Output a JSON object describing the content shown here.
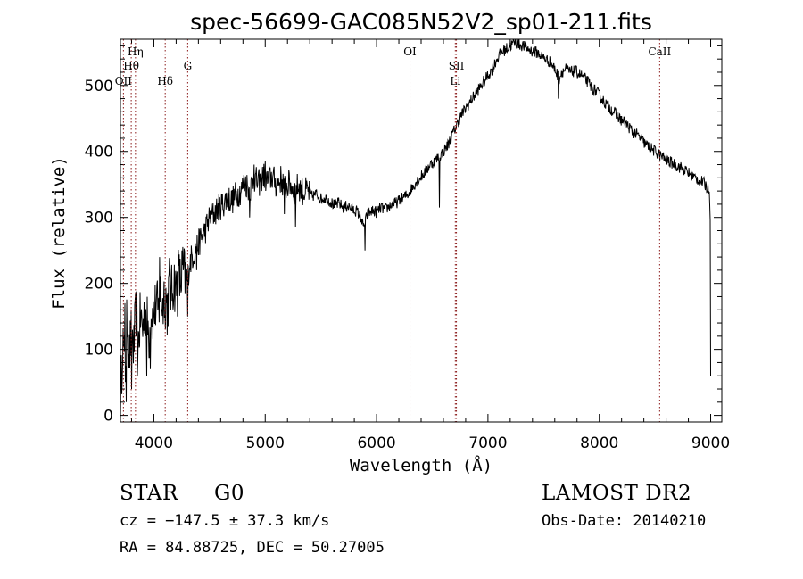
{
  "chart_data": {
    "type": "line",
    "title": "spec-56699-GAC085N52V2_sp01-211.fits",
    "xlabel": "Wavelength (Å)",
    "ylabel": "Flux (relative)",
    "xlim": [
      3700,
      9100
    ],
    "ylim": [
      -10,
      570
    ],
    "xticks": [
      4000,
      5000,
      6000,
      7000,
      8000,
      9000
    ],
    "yticks": [
      0,
      100,
      200,
      300,
      400,
      500
    ],
    "grid": false,
    "spectrum": [
      [
        3700,
        5
      ],
      [
        3720,
        120
      ],
      [
        3740,
        60
      ],
      [
        3760,
        150
      ],
      [
        3780,
        90
      ],
      [
        3800,
        130
      ],
      [
        3820,
        100
      ],
      [
        3840,
        160
      ],
      [
        3860,
        110
      ],
      [
        3880,
        150
      ],
      [
        3900,
        130
      ],
      [
        3920,
        165
      ],
      [
        3940,
        140
      ],
      [
        3960,
        120
      ],
      [
        3980,
        160
      ],
      [
        4000,
        150
      ],
      [
        4020,
        170
      ],
      [
        4040,
        155
      ],
      [
        4060,
        185
      ],
      [
        4080,
        165
      ],
      [
        4100,
        195
      ],
      [
        4120,
        160
      ],
      [
        4140,
        200
      ],
      [
        4160,
        185
      ],
      [
        4180,
        205
      ],
      [
        4200,
        190
      ],
      [
        4220,
        215
      ],
      [
        4240,
        200
      ],
      [
        4260,
        220
      ],
      [
        4280,
        210
      ],
      [
        4300,
        200
      ],
      [
        4320,
        230
      ],
      [
        4340,
        240
      ],
      [
        4360,
        245
      ],
      [
        4380,
        255
      ],
      [
        4400,
        260
      ],
      [
        4430,
        270
      ],
      [
        4460,
        280
      ],
      [
        4500,
        300
      ],
      [
        4540,
        305
      ],
      [
        4580,
        315
      ],
      [
        4620,
        320
      ],
      [
        4660,
        330
      ],
      [
        4700,
        325
      ],
      [
        4740,
        335
      ],
      [
        4780,
        340
      ],
      [
        4820,
        355
      ],
      [
        4860,
        340
      ],
      [
        4900,
        360
      ],
      [
        4940,
        350
      ],
      [
        4980,
        365
      ],
      [
        5020,
        355
      ],
      [
        5060,
        362
      ],
      [
        5100,
        350
      ],
      [
        5140,
        358
      ],
      [
        5180,
        345
      ],
      [
        5220,
        352
      ],
      [
        5260,
        340
      ],
      [
        5300,
        348
      ],
      [
        5340,
        338
      ],
      [
        5380,
        340
      ],
      [
        5420,
        332
      ],
      [
        5460,
        336
      ],
      [
        5500,
        328
      ],
      [
        5540,
        330
      ],
      [
        5580,
        325
      ],
      [
        5620,
        318
      ],
      [
        5660,
        322
      ],
      [
        5700,
        315
      ],
      [
        5740,
        318
      ],
      [
        5780,
        312
      ],
      [
        5820,
        310
      ],
      [
        5860,
        300
      ],
      [
        5880,
        285
      ],
      [
        5900,
        295
      ],
      [
        5920,
        305
      ],
      [
        5960,
        310
      ],
      [
        6000,
        308
      ],
      [
        6040,
        315
      ],
      [
        6080,
        312
      ],
      [
        6120,
        318
      ],
      [
        6160,
        320
      ],
      [
        6200,
        325
      ],
      [
        6240,
        330
      ],
      [
        6280,
        335
      ],
      [
        6320,
        345
      ],
      [
        6360,
        355
      ],
      [
        6400,
        362
      ],
      [
        6440,
        370
      ],
      [
        6480,
        380
      ],
      [
        6520,
        385
      ],
      [
        6560,
        392
      ],
      [
        6600,
        400
      ],
      [
        6640,
        410
      ],
      [
        6680,
        425
      ],
      [
        6720,
        440
      ],
      [
        6760,
        455
      ],
      [
        6800,
        465
      ],
      [
        6840,
        475
      ],
      [
        6880,
        485
      ],
      [
        6920,
        495
      ],
      [
        6960,
        505
      ],
      [
        7000,
        515
      ],
      [
        7040,
        525
      ],
      [
        7080,
        540
      ],
      [
        7120,
        550
      ],
      [
        7160,
        555
      ],
      [
        7200,
        560
      ],
      [
        7240,
        565
      ],
      [
        7280,
        562
      ],
      [
        7320,
        560
      ],
      [
        7360,
        555
      ],
      [
        7400,
        552
      ],
      [
        7440,
        550
      ],
      [
        7480,
        545
      ],
      [
        7520,
        540
      ],
      [
        7560,
        535
      ],
      [
        7600,
        525
      ],
      [
        7640,
        510
      ],
      [
        7660,
        520
      ],
      [
        7700,
        525
      ],
      [
        7740,
        520
      ],
      [
        7780,
        522
      ],
      [
        7820,
        518
      ],
      [
        7860,
        512
      ],
      [
        7900,
        505
      ],
      [
        7940,
        495
      ],
      [
        7980,
        490
      ],
      [
        8020,
        480
      ],
      [
        8060,
        472
      ],
      [
        8100,
        465
      ],
      [
        8140,
        458
      ],
      [
        8180,
        450
      ],
      [
        8220,
        445
      ],
      [
        8260,
        438
      ],
      [
        8300,
        430
      ],
      [
        8340,
        425
      ],
      [
        8380,
        418
      ],
      [
        8420,
        410
      ],
      [
        8460,
        405
      ],
      [
        8500,
        400
      ],
      [
        8540,
        395
      ],
      [
        8580,
        390
      ],
      [
        8620,
        385
      ],
      [
        8660,
        382
      ],
      [
        8700,
        378
      ],
      [
        8740,
        375
      ],
      [
        8780,
        370
      ],
      [
        8820,
        365
      ],
      [
        8860,
        360
      ],
      [
        8900,
        356
      ],
      [
        8940,
        352
      ],
      [
        8970,
        345
      ],
      [
        8990,
        340
      ],
      [
        9000,
        280
      ]
    ],
    "dips": [
      {
        "x": 3750,
        "y": 20
      },
      {
        "x": 3800,
        "y": 40
      },
      {
        "x": 3850,
        "y": 60
      },
      {
        "x": 3935,
        "y": 60
      },
      {
        "x": 3968,
        "y": 70
      },
      {
        "x": 4102,
        "y": 130
      },
      {
        "x": 4210,
        "y": 150
      },
      {
        "x": 4305,
        "y": 150
      },
      {
        "x": 4383,
        "y": 220
      },
      {
        "x": 4861,
        "y": 300
      },
      {
        "x": 5172,
        "y": 305
      },
      {
        "x": 5270,
        "y": 285
      },
      {
        "x": 5895,
        "y": 250
      },
      {
        "x": 6563,
        "y": 315
      },
      {
        "x": 7630,
        "y": 480
      },
      {
        "x": 8998,
        "y": 60
      }
    ],
    "spikes": [
      {
        "x": 3740,
        "y": 170
      },
      {
        "x": 4050,
        "y": 240
      },
      {
        "x": 4250,
        "y": 250
      },
      {
        "x": 4900,
        "y": 380
      },
      {
        "x": 5000,
        "y": 385
      }
    ],
    "lines": [
      {
        "label": "Hη",
        "x": 3835,
        "row": 0
      },
      {
        "label": "Hθ",
        "x": 3797,
        "row": 1
      },
      {
        "label": "OII",
        "x": 3727,
        "row": 2
      },
      {
        "label": "Hδ",
        "x": 4102,
        "row": 2
      },
      {
        "label": "G",
        "x": 4304,
        "row": 1
      },
      {
        "label": "OI",
        "x": 6300,
        "row": 0
      },
      {
        "label": "SII",
        "x": 6717,
        "row": 1
      },
      {
        "label": "Li",
        "x": 6707,
        "row": 2
      },
      {
        "label": "CaII",
        "x": 8542,
        "row": 0
      }
    ]
  },
  "info": {
    "class": "STAR",
    "subclass": "G0",
    "survey": "LAMOST DR2",
    "cz": "cz = −147.5 ± 37.3 km/s",
    "obs_date": "Obs-Date: 20140210",
    "coords": "RA =  84.88725, DEC =  50.27005"
  }
}
